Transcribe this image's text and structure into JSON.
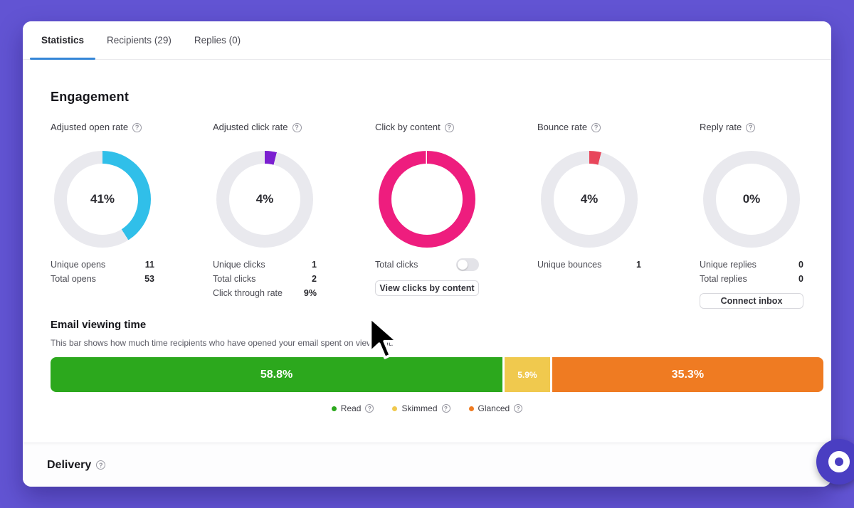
{
  "colors": {
    "background": "#6254d3",
    "accent_tab": "#3586d7",
    "donut_track": "#e9e9ee",
    "open_rate": "#30bfe9",
    "click_rate": "#7b1fd0",
    "click_by_content": "#ee1d7e",
    "bounce_rate": "#e8465b",
    "read": "#2ca81d",
    "skimmed": "#f0c94e",
    "glanced": "#ef7b22"
  },
  "icons": {
    "help": "?"
  },
  "tabs": [
    {
      "label": "Statistics",
      "active": true
    },
    {
      "label": "Recipients (29)",
      "active": false
    },
    {
      "label": "Replies (0)",
      "active": false
    }
  ],
  "engagement": {
    "title": "Engagement",
    "metrics": [
      {
        "title": "Adjusted open rate",
        "value": "41%",
        "percent": 41,
        "color": "#30bfe9",
        "track": "#e9e9ee",
        "stats": [
          {
            "label": "Unique opens",
            "value": "11"
          },
          {
            "label": "Total opens",
            "value": "53"
          }
        ]
      },
      {
        "title": "Adjusted click rate",
        "value": "4%",
        "percent": 4,
        "color": "#7b1fd0",
        "track": "#e9e9ee",
        "stats": [
          {
            "label": "Unique clicks",
            "value": "1"
          },
          {
            "label": "Total clicks",
            "value": "2"
          },
          {
            "label": "Click through rate",
            "value": "9%"
          }
        ]
      },
      {
        "title": "Click by content",
        "value": "",
        "percent": 99.6,
        "color": "#ee1d7e",
        "track": "#ffffff",
        "stats": [],
        "toggle_label": "Total clicks",
        "toggle_on": false,
        "button": "View clicks by content"
      },
      {
        "title": "Bounce rate",
        "value": "4%",
        "percent": 4,
        "color": "#e8465b",
        "track": "#e9e9ee",
        "stats": [
          {
            "label": "Unique bounces",
            "value": "1"
          }
        ]
      },
      {
        "title": "Reply rate",
        "value": "0%",
        "percent": 0,
        "color": "#b9b9c4",
        "track": "#e9e9ee",
        "stats": [
          {
            "label": "Unique replies",
            "value": "0"
          },
          {
            "label": "Total replies",
            "value": "0"
          }
        ],
        "button": "Connect inbox",
        "button_style": "connect"
      }
    ]
  },
  "viewing_time": {
    "title": "Email viewing time",
    "description": "This bar shows how much time recipients who have opened your email spent on viewing it.",
    "segments": [
      {
        "label": "Read",
        "display": "58.8%",
        "value": 58.8,
        "color": "#2ca81d",
        "label_size": "big"
      },
      {
        "label": "Skimmed",
        "display": "5.9%",
        "value": 5.9,
        "color": "#f0c94e",
        "label_size": "small"
      },
      {
        "label": "Glanced",
        "display": "35.3%",
        "value": 35.3,
        "color": "#ef7b22",
        "label_size": "big"
      }
    ]
  },
  "delivery": {
    "title": "Delivery"
  },
  "chart_data": [
    {
      "type": "pie",
      "title": "Adjusted open rate",
      "values": [
        41,
        59
      ],
      "categories": [
        "open",
        "rest"
      ]
    },
    {
      "type": "pie",
      "title": "Adjusted click rate",
      "values": [
        4,
        96
      ],
      "categories": [
        "click",
        "rest"
      ]
    },
    {
      "type": "pie",
      "title": "Click by content",
      "values": [
        100
      ],
      "categories": [
        "total clicks"
      ]
    },
    {
      "type": "pie",
      "title": "Bounce rate",
      "values": [
        4,
        96
      ],
      "categories": [
        "bounce",
        "rest"
      ]
    },
    {
      "type": "pie",
      "title": "Reply rate",
      "values": [
        0,
        100
      ],
      "categories": [
        "reply",
        "rest"
      ]
    },
    {
      "type": "bar",
      "title": "Email viewing time",
      "categories": [
        "Read",
        "Skimmed",
        "Glanced"
      ],
      "values": [
        58.8,
        5.9,
        35.3
      ]
    }
  ]
}
